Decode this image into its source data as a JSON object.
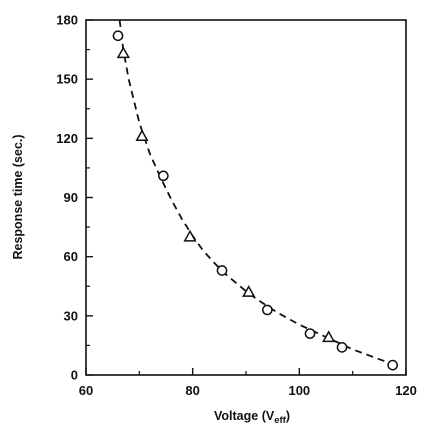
{
  "chart_data": {
    "type": "scatter",
    "xlabel": "Voltage (V",
    "xlabel_sub": "eff",
    "xlabel_end": ")",
    "ylabel": "Response time (sec.)",
    "xlim": [
      60,
      120
    ],
    "ylim": [
      0,
      180
    ],
    "x_ticks": [
      60,
      80,
      100,
      120
    ],
    "y_ticks": [
      0,
      30,
      60,
      90,
      120,
      150,
      180
    ],
    "grid": false,
    "marker_color": "#111111",
    "series": [
      {
        "marker": "circle",
        "points": [
          {
            "x": 66.0,
            "y": 172
          },
          {
            "x": 74.5,
            "y": 101
          },
          {
            "x": 85.5,
            "y": 53
          },
          {
            "x": 94.0,
            "y": 33
          },
          {
            "x": 102.0,
            "y": 21
          },
          {
            "x": 108.0,
            "y": 14
          },
          {
            "x": 117.5,
            "y": 5
          }
        ]
      },
      {
        "marker": "triangle",
        "points": [
          {
            "x": 67.0,
            "y": 163
          },
          {
            "x": 70.5,
            "y": 121
          },
          {
            "x": 79.5,
            "y": 70
          },
          {
            "x": 90.5,
            "y": 42
          },
          {
            "x": 105.5,
            "y": 19
          }
        ]
      }
    ],
    "fit_curve": {
      "style": "dashed",
      "points": [
        [
          66.3,
          180
        ],
        [
          67,
          165
        ],
        [
          68,
          150
        ],
        [
          70,
          128
        ],
        [
          72,
          112
        ],
        [
          74,
          100
        ],
        [
          76,
          89
        ],
        [
          78,
          79
        ],
        [
          80,
          70.5
        ],
        [
          82,
          63
        ],
        [
          84,
          57
        ],
        [
          86,
          51.5
        ],
        [
          88,
          47
        ],
        [
          90,
          42.5
        ],
        [
          92,
          38.5
        ],
        [
          94,
          35
        ],
        [
          96,
          31.5
        ],
        [
          98,
          28.5
        ],
        [
          100,
          25.5
        ],
        [
          102,
          23
        ],
        [
          104,
          20.5
        ],
        [
          106,
          18
        ],
        [
          108,
          15.5
        ],
        [
          110,
          13
        ],
        [
          112,
          11
        ],
        [
          114,
          9
        ],
        [
          116,
          7
        ],
        [
          118,
          5
        ]
      ]
    }
  }
}
